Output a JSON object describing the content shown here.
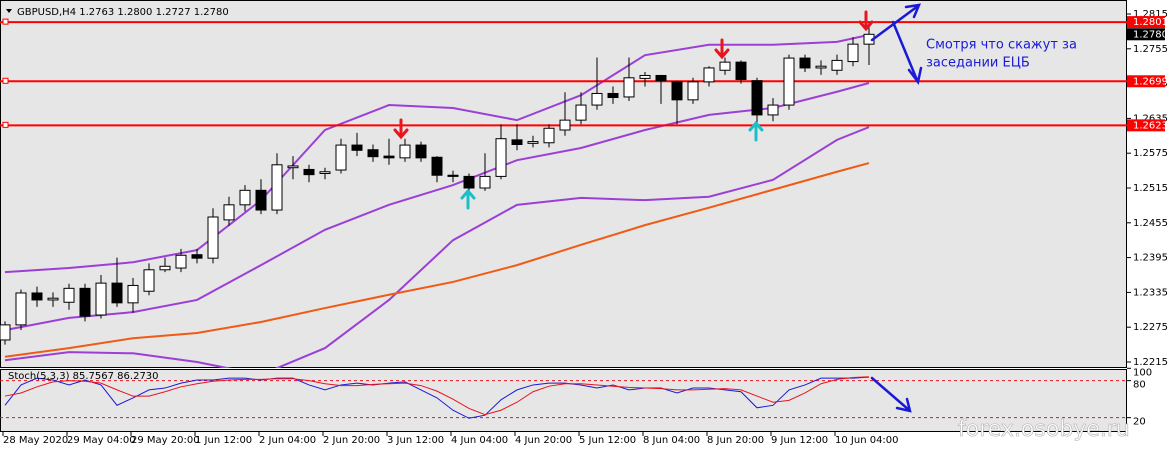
{
  "chart_data": {
    "type": "candlestick",
    "header": "GBPUSD,H4 1.2763 1.2800 1.2727 1.2780",
    "categories": [
      "28 May 2020",
      null,
      null,
      null,
      "29 May 04:00",
      null,
      null,
      null,
      "29 May 20:00",
      null,
      null,
      null,
      "1 Jun 12:00",
      null,
      null,
      null,
      "2 Jun 04:00",
      null,
      null,
      null,
      "2 Jun 20:00",
      null,
      null,
      null,
      "3 Jun 12:00",
      null,
      null,
      null,
      "4 Jun 04:00",
      null,
      null,
      null,
      "4 Jun 20:00",
      null,
      null,
      null,
      "5 Jun 12:00",
      null,
      null,
      null,
      "8 Jun 04:00",
      null,
      null,
      null,
      "8 Jun 20:00",
      null,
      null,
      null,
      "9 Jun 12:00",
      null,
      null,
      null,
      "10 Jun 04:00",
      null,
      null
    ],
    "open": [
      1.2253,
      1.2279,
      1.2334,
      1.2322,
      1.2318,
      1.2342,
      1.2296,
      1.2351,
      1.2317,
      1.2337,
      1.2374,
      1.2377,
      1.24,
      1.2394,
      1.246,
      1.2486,
      1.2511,
      1.2477,
      1.255,
      1.2547,
      1.254,
      1.2546,
      1.2589,
      1.2581,
      1.257,
      1.2567,
      1.2589,
      1.2568,
      1.2537,
      1.2535,
      1.2515,
      1.2535,
      1.2598,
      1.2592,
      1.2593,
      1.2615,
      1.2632,
      1.2658,
      1.2678,
      1.2672,
      1.2704,
      1.2709,
      1.2698,
      1.2667,
      1.2698,
      1.2718,
      1.2732,
      1.27,
      1.2641,
      1.2658,
      1.2739,
      1.2722,
      1.2718,
      1.2733,
      1.2763
    ],
    "high": [
      1.2285,
      1.234,
      1.2345,
      1.2335,
      1.235,
      1.235,
      1.2365,
      1.2395,
      1.236,
      1.2385,
      1.2395,
      1.241,
      1.241,
      1.248,
      1.25,
      1.252,
      1.253,
      1.2575,
      1.257,
      1.2555,
      1.255,
      1.26,
      1.261,
      1.259,
      1.26,
      1.26,
      1.2595,
      1.257,
      1.2545,
      1.254,
      1.2575,
      1.2625,
      1.2625,
      1.2605,
      1.2625,
      1.268,
      1.268,
      1.274,
      1.269,
      1.274,
      1.2715,
      1.271,
      1.27,
      1.2705,
      1.2725,
      1.274,
      1.2735,
      1.2705,
      1.267,
      1.2745,
      1.2745,
      1.2735,
      1.2745,
      1.2775,
      1.28
    ],
    "low": [
      1.2245,
      1.227,
      1.231,
      1.231,
      1.2305,
      1.2285,
      1.229,
      1.231,
      1.23,
      1.233,
      1.237,
      1.237,
      1.2385,
      1.2385,
      1.245,
      1.2475,
      1.247,
      1.247,
      1.253,
      1.2525,
      1.253,
      1.254,
      1.257,
      1.256,
      1.2555,
      1.256,
      1.256,
      1.2525,
      1.2525,
      1.2508,
      1.251,
      1.253,
      1.258,
      1.2585,
      1.2585,
      1.2605,
      1.2625,
      1.265,
      1.266,
      1.2665,
      1.269,
      1.266,
      1.2625,
      1.266,
      1.269,
      1.271,
      1.2695,
      1.2625,
      1.263,
      1.265,
      1.2715,
      1.271,
      1.271,
      1.2725,
      1.2727
    ],
    "close": [
      1.2279,
      1.2334,
      1.2322,
      1.2325,
      1.2342,
      1.2294,
      1.2351,
      1.2317,
      1.2347,
      1.2374,
      1.238,
      1.2399,
      1.2394,
      1.2465,
      1.2486,
      1.2511,
      1.2477,
      1.2555,
      1.2553,
      1.2538,
      1.2543,
      1.2589,
      1.258,
      1.2569,
      1.2567,
      1.2589,
      1.2567,
      1.2537,
      1.2535,
      1.2515,
      1.2535,
      1.26,
      1.259,
      1.2595,
      1.2618,
      1.2632,
      1.2658,
      1.2678,
      1.2671,
      1.2705,
      1.2709,
      1.27,
      1.2667,
      1.2698,
      1.2722,
      1.2732,
      1.2702,
      1.2641,
      1.2658,
      1.2739,
      1.2722,
      1.2725,
      1.2735,
      1.2763,
      1.278
    ],
    "up_color": "#ffffff",
    "down_color": "#000000",
    "overlays": [
      {
        "color": "#9b3fd6",
        "x": [
          0,
          4,
          8,
          12,
          16,
          20,
          24,
          28,
          32,
          36,
          40,
          44,
          48,
          52,
          54
        ],
        "values": [
          1.237,
          1.2377,
          1.2387,
          1.2408,
          1.2494,
          1.2615,
          1.2658,
          1.2653,
          1.2632,
          1.2675,
          1.2744,
          1.2762,
          1.2762,
          1.2767,
          1.2779
        ]
      },
      {
        "color": "#9b3fd6",
        "x": [
          0,
          4,
          8,
          12,
          16,
          20,
          24,
          28,
          32,
          36,
          40,
          44,
          48,
          52,
          54
        ],
        "values": [
          1.227,
          1.2291,
          1.2301,
          1.2322,
          1.2382,
          1.2443,
          1.2486,
          1.252,
          1.2563,
          1.2584,
          1.2615,
          1.2641,
          1.2653,
          1.2681,
          1.2696
        ]
      },
      {
        "color": "#9b3fd6",
        "x": [
          0,
          4,
          8,
          12,
          16,
          20,
          24,
          28,
          32,
          36,
          40,
          44,
          48,
          52,
          54
        ],
        "values": [
          1.2218,
          1.2232,
          1.223,
          1.2215,
          1.2193,
          1.2239,
          1.2322,
          1.2425,
          1.2486,
          1.2498,
          1.2494,
          1.25,
          1.2529,
          1.2598,
          1.262
        ]
      },
      {
        "color": "#f05a14",
        "x": [
          0,
          4,
          8,
          12,
          16,
          20,
          24,
          28,
          32,
          36,
          40,
          44,
          48,
          52,
          54
        ],
        "values": [
          1.2224,
          1.2239,
          1.2256,
          1.2265,
          1.2284,
          1.2308,
          1.2331,
          1.2353,
          1.2382,
          1.2417,
          1.2451,
          1.2481,
          1.2512,
          1.2543,
          1.2558
        ]
      }
    ],
    "levels": [
      1.2801,
      1.2699,
      1.2623
    ],
    "level_color": "#ff0000",
    "last_price": {
      "value": 1.278,
      "label": "1.2780"
    },
    "ylim": [
      1.2215,
      1.2815
    ],
    "yticks": [
      1.2215,
      1.2275,
      1.2335,
      1.2395,
      1.2455,
      1.2515,
      1.2575,
      1.2635,
      1.2695,
      1.2755,
      1.2815
    ],
    "annotation": [
      "Смотря что скажут за",
      "заседании ЕЦБ"
    ],
    "watermark": "forex.osobye.ru",
    "stochastic": {
      "label": "Stoch(5,3,3) 85.7567 86.2730",
      "ylim": [
        0,
        100
      ],
      "yticks": [
        20,
        80,
        100
      ],
      "levels": [
        20,
        80
      ],
      "series": [
        {
          "color": "#1a1ad6",
          "values": [
            40,
            73,
            84,
            81,
            73,
            81,
            73,
            40,
            52,
            65,
            68,
            76,
            81,
            81,
            84,
            84,
            81,
            84,
            84,
            73,
            65,
            73,
            76,
            73,
            76,
            78,
            65,
            52,
            32,
            19,
            24,
            49,
            65,
            73,
            76,
            76,
            73,
            68,
            73,
            65,
            68,
            68,
            60,
            68,
            68,
            65,
            62,
            36,
            40,
            65,
            73,
            84,
            84,
            84,
            85.7567
          ]
        },
        {
          "color": "#e8141e",
          "values": [
            55,
            60,
            70,
            78,
            80,
            79,
            76,
            65,
            55,
            55,
            62,
            70,
            75,
            79,
            81,
            82,
            82,
            83,
            83,
            80,
            75,
            72,
            72,
            74,
            75,
            76,
            72,
            63,
            50,
            35,
            25,
            32,
            45,
            62,
            71,
            75,
            75,
            73,
            71,
            69,
            68,
            67,
            65,
            65,
            66,
            67,
            65,
            55,
            45,
            48,
            60,
            75,
            82,
            85,
            86.273
          ]
        }
      ]
    }
  }
}
